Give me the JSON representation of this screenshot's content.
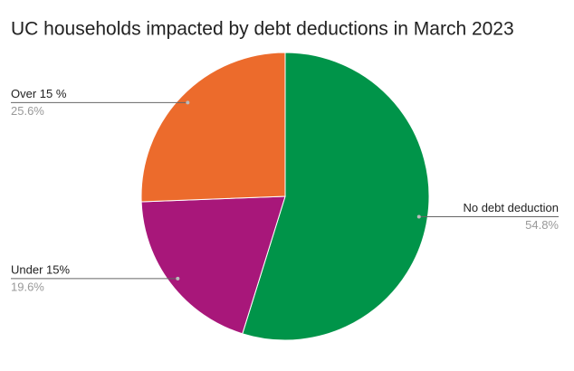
{
  "chart_data": {
    "type": "pie",
    "title": "UC households impacted by debt deductions in March 2023",
    "categories": [
      "No debt deduction",
      "Under 15%",
      "Over 15 %"
    ],
    "values": [
      54.8,
      19.6,
      25.6
    ],
    "value_labels": [
      "54.8%",
      "19.6%",
      "25.6%"
    ],
    "colors": [
      "#009449",
      "#a8177a",
      "#ec6b2c"
    ]
  }
}
